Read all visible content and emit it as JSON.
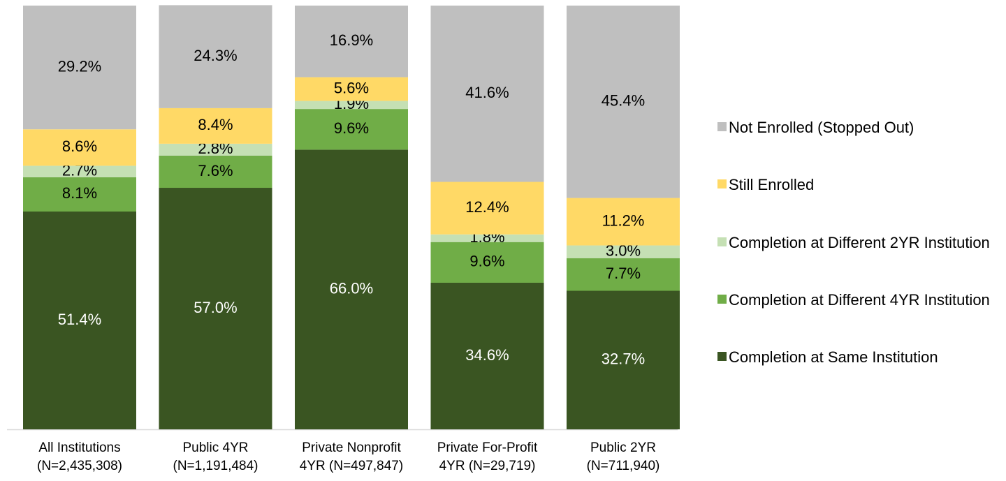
{
  "chart_data": {
    "type": "stacked_bar",
    "categories": [
      "All Institutions\n(N=2,435,308)",
      "Public 4YR\n(N=1,191,484)",
      "Private Nonprofit\n4YR (N=497,847)",
      "Private For-Profit\n4YR (N=29,719)",
      "Public 2YR\n(N=711,940)"
    ],
    "ylim": [
      0,
      100
    ],
    "series": [
      {
        "name": "Completion at Same Institution",
        "color": "#3a5522",
        "label_color": "#ffffff",
        "values": [
          51.4,
          57.0,
          66.0,
          34.6,
          32.7
        ],
        "value_labels": [
          "51.4%",
          "57.0%",
          "66.0%",
          "34.6%",
          "32.7%"
        ]
      },
      {
        "name": "Completion at Different 4YR Institution",
        "color": "#70ad47",
        "label_color": "#000000",
        "values": [
          8.1,
          7.6,
          9.6,
          9.6,
          7.7
        ],
        "value_labels": [
          "8.1%",
          "7.6%",
          "9.6%",
          "9.6%",
          "7.7%"
        ]
      },
      {
        "name": "Completion at Different 2YR Institution",
        "color": "#c5e0b4",
        "label_color": "#000000",
        "values": [
          2.7,
          2.8,
          1.9,
          1.8,
          3.0
        ],
        "value_labels": [
          "2.7%",
          "2.8%",
          "1.9%",
          "1.8%",
          "3.0%"
        ]
      },
      {
        "name": "Still Enrolled",
        "color": "#ffd966",
        "label_color": "#000000",
        "values": [
          8.6,
          8.4,
          5.6,
          12.4,
          11.2
        ],
        "value_labels": [
          "8.6%",
          "8.4%",
          "5.6%",
          "12.4%",
          "11.2%"
        ]
      },
      {
        "name": "Not Enrolled (Stopped Out)",
        "color": "#bfbfbf",
        "label_color": "#000000",
        "values": [
          29.2,
          24.3,
          16.9,
          41.6,
          45.4
        ],
        "value_labels": [
          "29.2%",
          "24.3%",
          "16.9%",
          "41.6%",
          "45.4%"
        ]
      }
    ]
  }
}
